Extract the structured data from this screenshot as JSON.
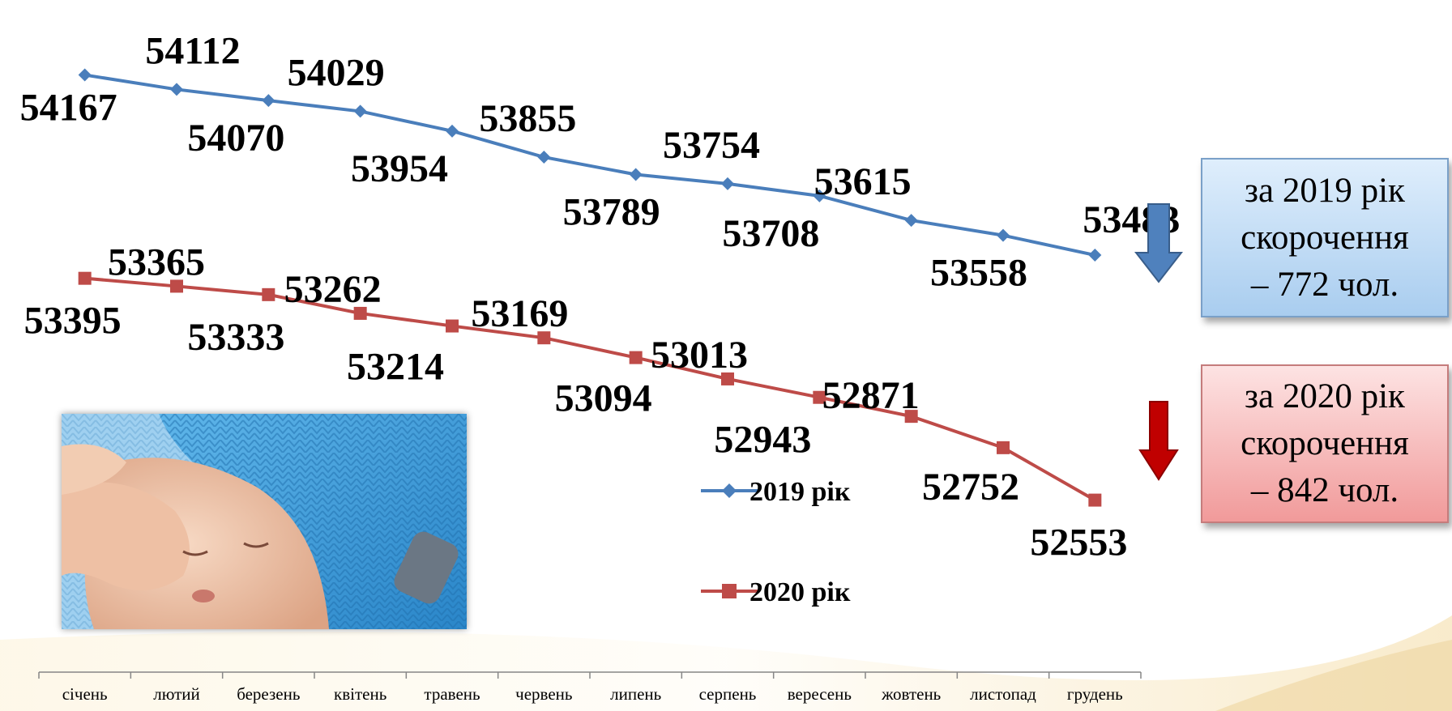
{
  "chart_data": {
    "type": "line",
    "categories": [
      "січень",
      "лютий",
      "березень",
      "квітень",
      "травень",
      "червень",
      "липень",
      "серпень",
      "вересень",
      "жовтень",
      "листопад",
      "грудень"
    ],
    "series": [
      {
        "name": "2019 рік",
        "color": "#4a7ebb",
        "marker": "diamond",
        "values": [
          54167,
          54112,
          54070,
          54029,
          53954,
          53855,
          53789,
          53754,
          53708,
          53615,
          53558,
          53483
        ]
      },
      {
        "name": "2020 рік",
        "color": "#be4b48",
        "marker": "square",
        "values": [
          53395,
          53365,
          53333,
          53262,
          53214,
          53169,
          53094,
          53013,
          52943,
          52871,
          52752,
          52553
        ]
      }
    ],
    "title": "",
    "xlabel": "",
    "ylabel": "",
    "y_axis_visible": false,
    "ylim": [
      51900,
      54390
    ],
    "grid": false,
    "legend_position": "center"
  },
  "summary_boxes": [
    {
      "lines": [
        "за 2019 рік",
        "скорочення",
        "– 772 чол."
      ],
      "color": "#a9cdef",
      "arrow_color": "#4f81bd",
      "arrow_icon": "down-arrow-icon"
    },
    {
      "lines": [
        "за 2020 рік",
        "скорочення",
        "– 842 чол."
      ],
      "color": "#f19a9a",
      "arrow_color": "#c00000",
      "arrow_icon": "down-arrow-icon"
    }
  ],
  "photo": {
    "icon": "sleeping-baby-photo"
  }
}
